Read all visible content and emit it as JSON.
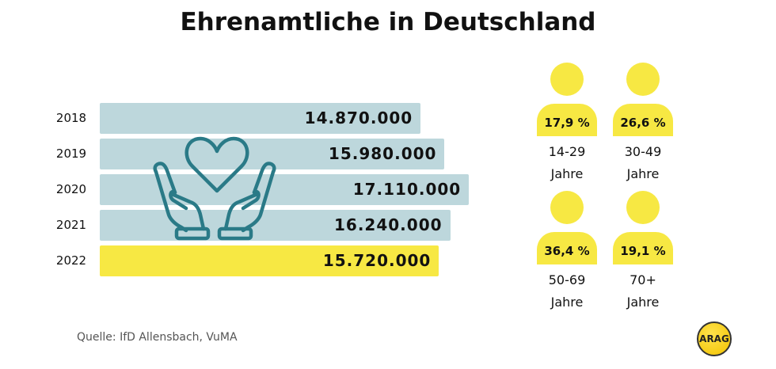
{
  "title": "Ehrenamtliche in Deutschland",
  "chart_data": {
    "type": "bar",
    "orientation": "horizontal",
    "categories": [
      "2018",
      "2019",
      "2020",
      "2021",
      "2022"
    ],
    "values": [
      14870000,
      15980000,
      17110000,
      16240000,
      15720000
    ],
    "labels": [
      "14.870.000",
      "15.980.000",
      "17.110.000",
      "16.240.000",
      "15.720.000"
    ],
    "highlight": "2022",
    "colors": {
      "bar": "#bdd7dc",
      "highlight": "#f7e843"
    },
    "grid": false
  },
  "age_groups": [
    {
      "percent": "17,9 %",
      "range": "14-29",
      "unit": "Jahre"
    },
    {
      "percent": "26,6 %",
      "range": "30-49",
      "unit": "Jahre"
    },
    {
      "percent": "36,4 %",
      "range": "50-69",
      "unit": "Jahre"
    },
    {
      "percent": "19,1 %",
      "range": "70+",
      "unit": "Jahre"
    }
  ],
  "person_color": "#f7e843",
  "icon": "hands-heart-icon",
  "icon_color": "#2a7a87",
  "source": "Quelle:  IfD Allensbach, VuMA",
  "logo": "ARAG"
}
